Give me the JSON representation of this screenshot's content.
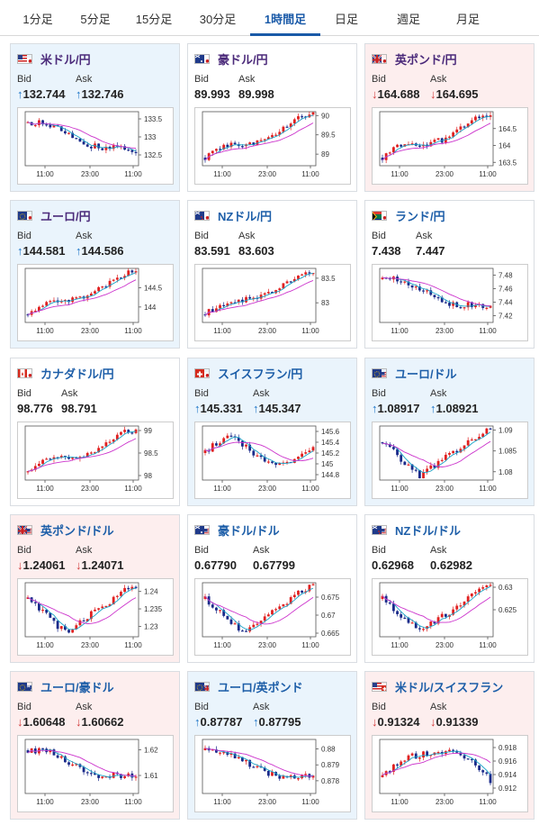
{
  "tabs": [
    {
      "label": "1分足"
    },
    {
      "label": "5分足"
    },
    {
      "label": "15分足"
    },
    {
      "label": "30分足"
    },
    {
      "label": "1時間足",
      "active": true
    },
    {
      "label": "日足"
    },
    {
      "label": "週足"
    },
    {
      "label": "月足"
    }
  ],
  "bid_label": "Bid",
  "ask_label": "Ask",
  "colors": {
    "up_arrow": "#1a73c7",
    "down_arrow": "#d23b3b",
    "candle_up": "#e02020",
    "candle_down": "#1a2a8a",
    "ma_fast": "#1aa3c7",
    "ma_slow": "#cc33cc"
  },
  "pairs": [
    {
      "name": "米ドル/円",
      "flag": "us-jp",
      "bg": "blue",
      "direction": "up",
      "arrow": "↑",
      "bid": "132.744",
      "ask": "132.746",
      "chart_data": {
        "type": "candlestick",
        "x_ticks": [
          "11:00",
          "23:00",
          "11:00"
        ],
        "y_ticks": [
          "133.5",
          "133",
          "132.5"
        ],
        "ylim": [
          132.2,
          133.7
        ],
        "trend": "down"
      }
    },
    {
      "name": "豪ドル/円",
      "flag": "au-jp",
      "bg": "white",
      "direction": "up",
      "arrow": "",
      "bid": "89.993",
      "ask": "89.998",
      "chart_data": {
        "type": "candlestick",
        "x_ticks": [
          "11:00",
          "23:00",
          "11:00"
        ],
        "y_ticks": [
          "90",
          "89.5",
          "89"
        ],
        "ylim": [
          88.7,
          90.1
        ],
        "trend": "up"
      }
    },
    {
      "name": "英ポンド/円",
      "flag": "gb-jp",
      "bg": "pink",
      "direction": "down",
      "arrow": "↓",
      "bid": "164.688",
      "ask": "164.695",
      "chart_data": {
        "type": "candlestick",
        "x_ticks": [
          "11:00",
          "23:00",
          "11:00"
        ],
        "y_ticks": [
          "164.5",
          "164",
          "163.5"
        ],
        "ylim": [
          163.4,
          165.0
        ],
        "trend": "up"
      }
    },
    {
      "name": "ユーロ/円",
      "flag": "eu-jp",
      "bg": "blue",
      "direction": "up",
      "arrow": "↑",
      "bid": "144.581",
      "ask": "144.586",
      "chart_data": {
        "type": "candlestick",
        "x_ticks": [
          "11:00",
          "23:00",
          "11:00"
        ],
        "y_ticks": [
          "144.5",
          "144"
        ],
        "ylim": [
          143.6,
          145.0
        ],
        "trend": "up"
      }
    },
    {
      "name": "NZドル/円",
      "flag": "nz-jp",
      "bg": "white",
      "direction": "up",
      "arrow": "",
      "bid": "83.591",
      "ask": "83.603",
      "chart_data": {
        "type": "candlestick",
        "x_ticks": [
          "11:00",
          "23:00",
          "11:00"
        ],
        "y_ticks": [
          "83.5",
          "83"
        ],
        "ylim": [
          82.6,
          83.7
        ],
        "trend": "up"
      }
    },
    {
      "name": "ランド/円",
      "flag": "za-jp",
      "bg": "white",
      "direction": "up",
      "arrow": "",
      "bid": "7.438",
      "ask": "7.447",
      "chart_data": {
        "type": "candlestick",
        "x_ticks": [
          "11:00",
          "23:00",
          "11:00"
        ],
        "y_ticks": [
          "7.48",
          "7.46",
          "7.44",
          "7.42"
        ],
        "ylim": [
          7.41,
          7.49
        ],
        "trend": "down"
      }
    },
    {
      "name": "カナダドル/円",
      "flag": "ca-jp",
      "bg": "white",
      "direction": "up",
      "arrow": "",
      "bid": "98.776",
      "ask": "98.791",
      "chart_data": {
        "type": "candlestick",
        "x_ticks": [
          "11:00",
          "23:00",
          "11:00"
        ],
        "y_ticks": [
          "99",
          "98.5",
          "98"
        ],
        "ylim": [
          97.9,
          99.1
        ],
        "trend": "up"
      }
    },
    {
      "name": "スイスフラン/円",
      "flag": "ch-jp",
      "bg": "blue",
      "direction": "up",
      "arrow": "↑",
      "bid": "145.331",
      "ask": "145.347",
      "chart_data": {
        "type": "candlestick",
        "x_ticks": [
          "11:00",
          "23:00",
          "11:00"
        ],
        "y_ticks": [
          "145.6",
          "145.4",
          "145.2",
          "145",
          "144.8"
        ],
        "ylim": [
          144.7,
          145.7
        ],
        "trend": "flat"
      }
    },
    {
      "name": "ユーロ/ドル",
      "flag": "eu-us",
      "bg": "blue",
      "direction": "up",
      "arrow": "↑",
      "bid": "1.08917",
      "ask": "1.08921",
      "chart_data": {
        "type": "candlestick",
        "x_ticks": [
          "11:00",
          "23:00",
          "11:00"
        ],
        "y_ticks": [
          "1.09",
          "1.085",
          "1.08"
        ],
        "ylim": [
          1.078,
          1.091
        ],
        "trend": "v"
      }
    },
    {
      "name": "英ポンド/ドル",
      "flag": "gb-us",
      "bg": "pink",
      "direction": "down",
      "arrow": "↓",
      "bid": "1.24061",
      "ask": "1.24071",
      "chart_data": {
        "type": "candlestick",
        "x_ticks": [
          "11:00",
          "23:00",
          "11:00"
        ],
        "y_ticks": [
          "1.24",
          "1.235",
          "1.23"
        ],
        "ylim": [
          1.227,
          1.2425
        ],
        "trend": "v"
      }
    },
    {
      "name": "豪ドル/ドル",
      "flag": "au-us",
      "bg": "white",
      "direction": "up",
      "arrow": "",
      "bid": "0.67790",
      "ask": "0.67799",
      "chart_data": {
        "type": "candlestick",
        "x_ticks": [
          "11:00",
          "23:00",
          "11:00"
        ],
        "y_ticks": [
          "0.675",
          "0.67",
          "0.665"
        ],
        "ylim": [
          0.664,
          0.679
        ],
        "trend": "v"
      }
    },
    {
      "name": "NZドル/ドル",
      "flag": "nz-us",
      "bg": "white",
      "direction": "up",
      "arrow": "",
      "bid": "0.62968",
      "ask": "0.62982",
      "chart_data": {
        "type": "candlestick",
        "x_ticks": [
          "11:00",
          "23:00",
          "11:00"
        ],
        "y_ticks": [
          "0.63",
          "0.625"
        ],
        "ylim": [
          0.619,
          0.631
        ],
        "trend": "v"
      }
    },
    {
      "name": "ユーロ/豪ドル",
      "flag": "eu-au",
      "bg": "pink",
      "direction": "down",
      "arrow": "↓",
      "bid": "1.60648",
      "ask": "1.60662",
      "chart_data": {
        "type": "candlestick",
        "x_ticks": [
          "11:00",
          "23:00",
          "11:00"
        ],
        "y_ticks": [
          "1.62",
          "1.61"
        ],
        "ylim": [
          1.603,
          1.624
        ],
        "trend": "down"
      }
    },
    {
      "name": "ユーロ/英ポンド",
      "flag": "eu-gb",
      "bg": "blue",
      "direction": "up",
      "arrow": "↑",
      "bid": "0.87787",
      "ask": "0.87795",
      "chart_data": {
        "type": "candlestick",
        "x_ticks": [
          "11:00",
          "23:00",
          "11:00"
        ],
        "y_ticks": [
          "0.88",
          "0.879",
          "0.878"
        ],
        "ylim": [
          0.8772,
          0.8806
        ],
        "trend": "down"
      }
    },
    {
      "name": "米ドル/スイスフラン",
      "flag": "us-ch",
      "bg": "pink",
      "direction": "down",
      "arrow": "↓",
      "bid": "0.91324",
      "ask": "0.91339",
      "chart_data": {
        "type": "candlestick",
        "x_ticks": [
          "11:00",
          "23:00",
          "11:00"
        ],
        "y_ticks": [
          "0.918",
          "0.916",
          "0.914",
          "0.912"
        ],
        "ylim": [
          0.9112,
          0.9192
        ],
        "trend": "updown"
      }
    }
  ]
}
